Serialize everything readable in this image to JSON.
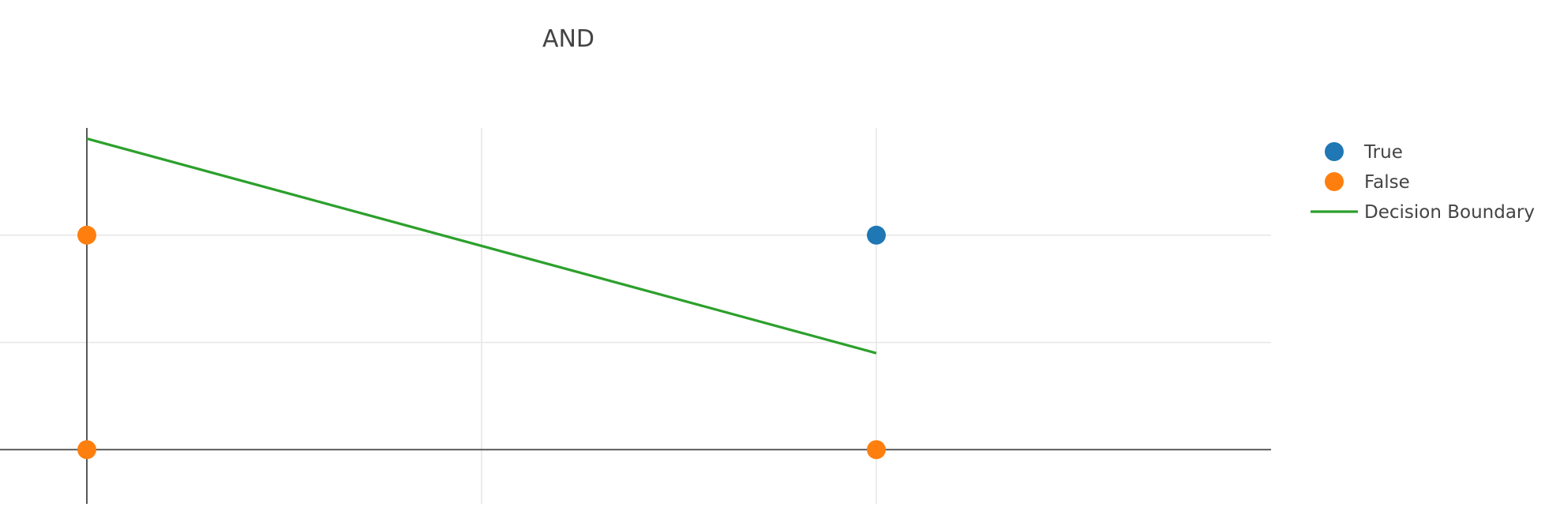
{
  "chart_data": {
    "type": "scatter",
    "title": "AND",
    "xlabel": "",
    "ylabel": "",
    "xlim": [
      -0.11,
      1.5
    ],
    "ylim": [
      -0.26,
      1.5
    ],
    "x_grid_values": [
      0,
      0.5,
      1
    ],
    "y_grid_values": [
      0,
      0.5,
      1
    ],
    "grid": true,
    "legend_position": "top-right",
    "series": [
      {
        "name": "True",
        "mode": "markers",
        "color": "#1f77b4",
        "points": [
          [
            1,
            1
          ]
        ]
      },
      {
        "name": "False",
        "mode": "markers",
        "color": "#ff7f0e",
        "points": [
          [
            0,
            0
          ],
          [
            0,
            1
          ],
          [
            1,
            0
          ]
        ]
      },
      {
        "name": "Decision Boundary",
        "mode": "line",
        "color": "#2ca02c",
        "points": [
          [
            0,
            1.45
          ],
          [
            1,
            0.45
          ]
        ]
      }
    ]
  }
}
